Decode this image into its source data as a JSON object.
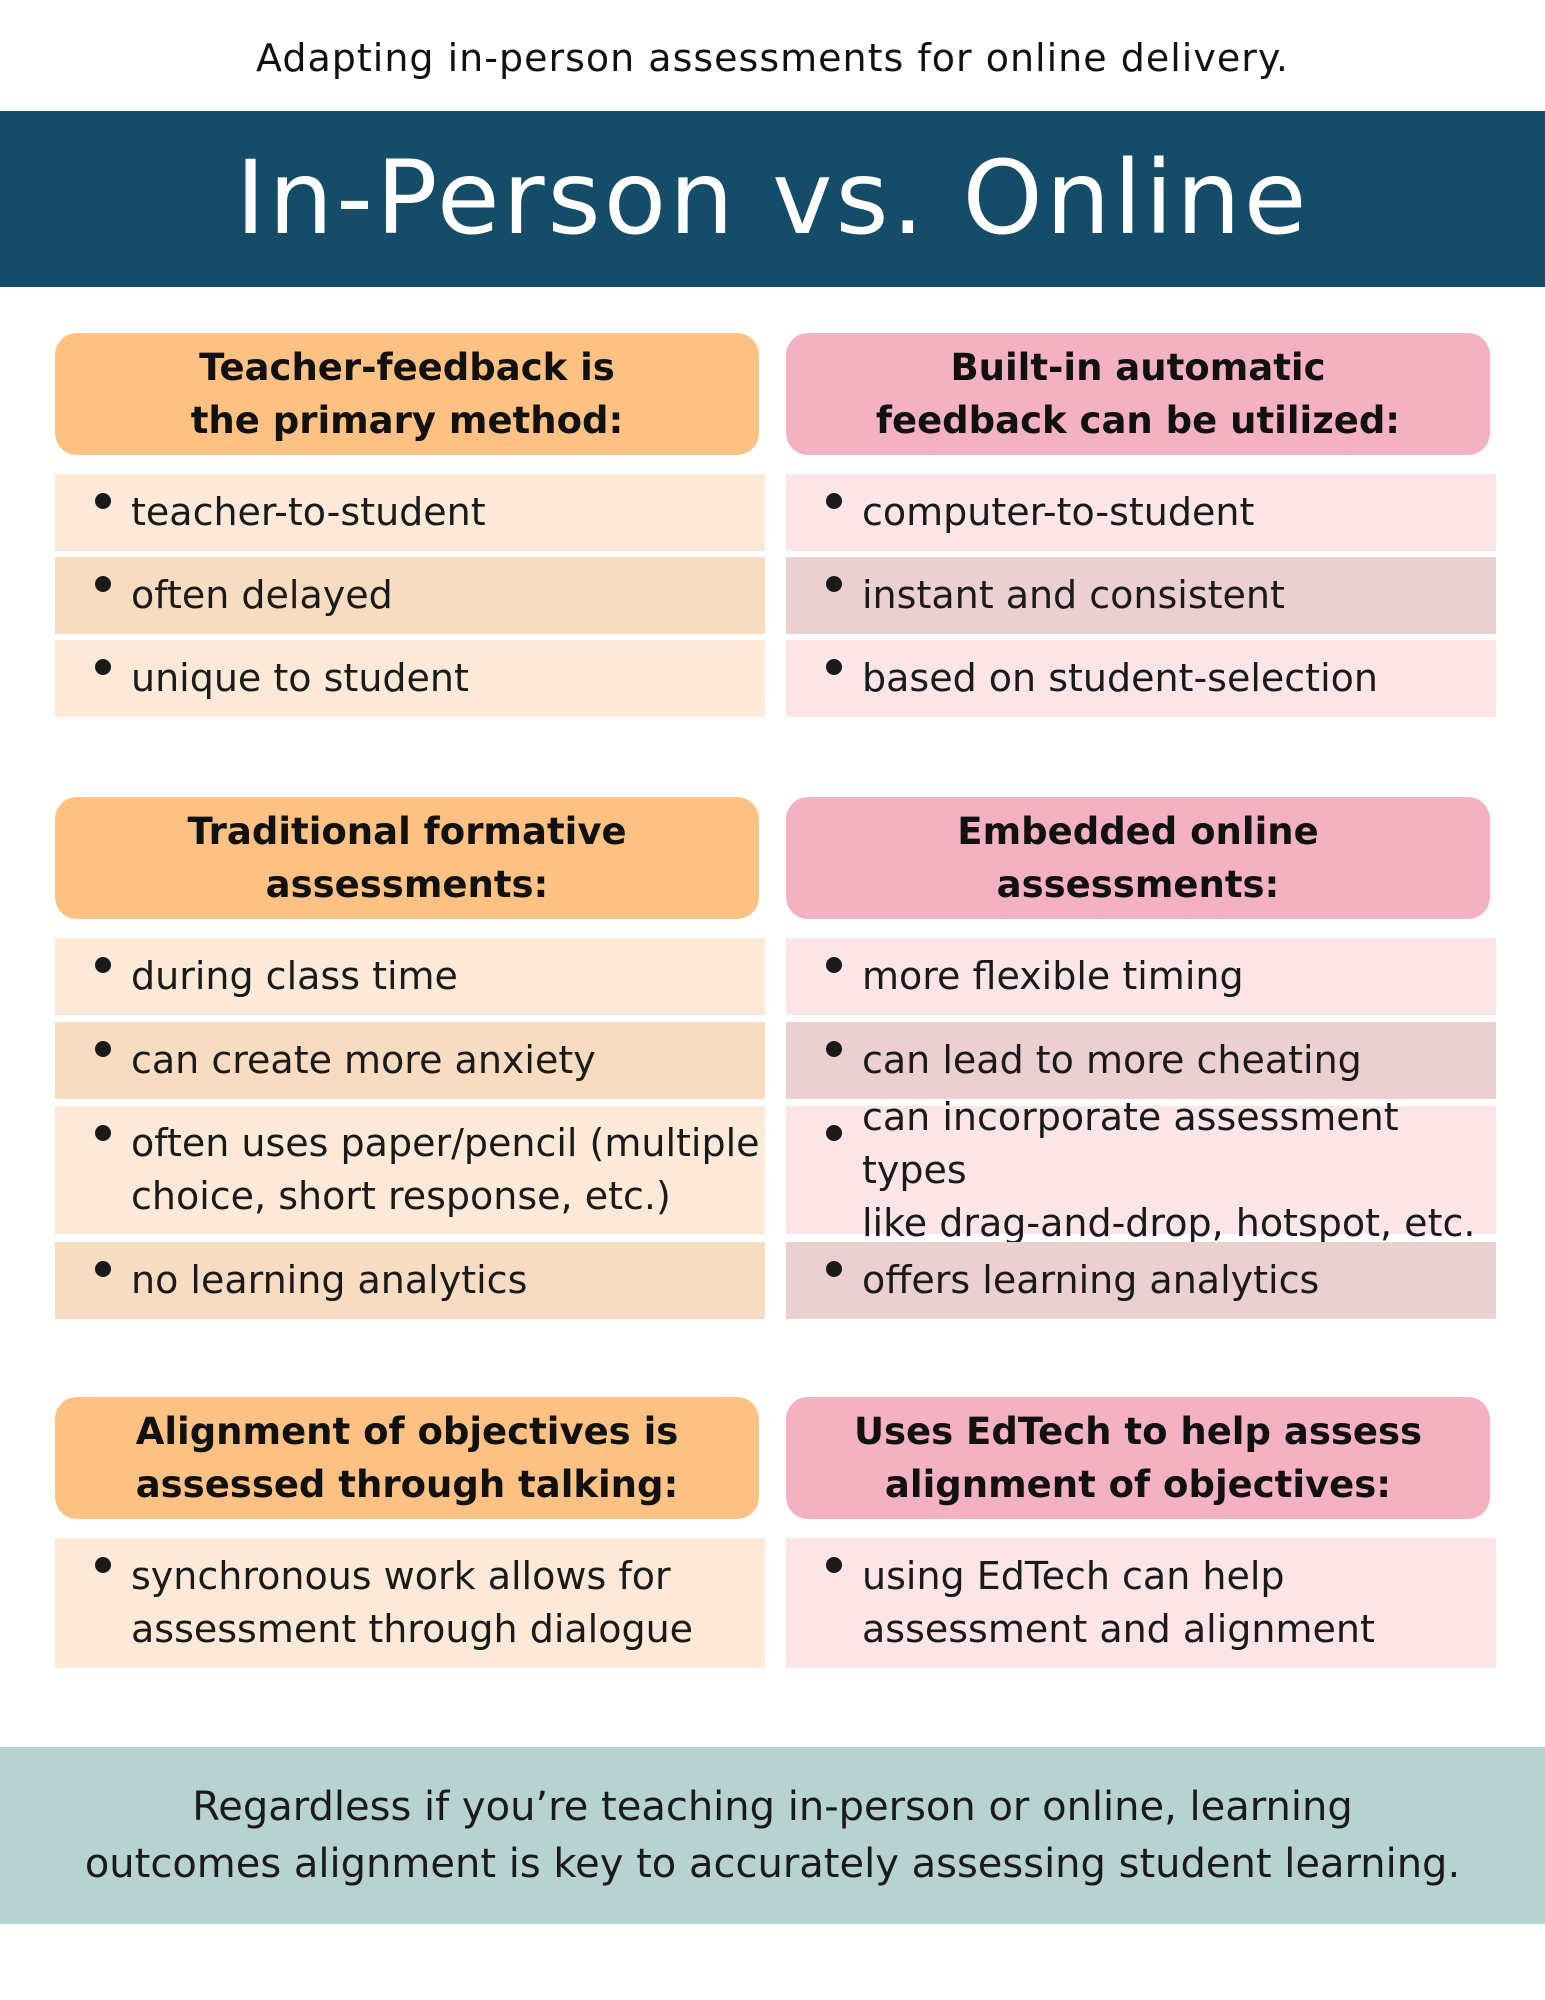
{
  "subtitle": "Adapting in-person assessments for online delivery.",
  "title": "In-Person vs. Online",
  "sections": [
    {
      "in_person": {
        "header": "Teacher-feedback is\nthe primary method:",
        "items": [
          "teacher-to-student",
          "often delayed",
          "unique to student"
        ]
      },
      "online": {
        "header": "Built-in automatic\nfeedback can be utilized:",
        "items": [
          "computer-to-student",
          "instant and consistent",
          "based on student-selection"
        ]
      }
    },
    {
      "in_person": {
        "header": "Traditional formative\nassessments:",
        "items": [
          "during class time",
          "can create more anxiety",
          "often uses paper/pencil (multiple\nchoice, short response, etc.)",
          "no learning analytics"
        ]
      },
      "online": {
        "header": "Embedded online\nassessments:",
        "items": [
          "more flexible timing",
          "can lead to more cheating",
          "can incorporate assessment types\nlike drag-and-drop, hotspot, etc.",
          "offers learning analytics"
        ]
      }
    },
    {
      "in_person": {
        "header": "Alignment of objectives is\nassessed through talking:",
        "items": [
          "synchronous work allows for\nassessment through dialogue"
        ]
      },
      "online": {
        "header": "Uses EdTech to help assess\nalignment of objectives:",
        "items": [
          "using EdTech can help\nassessment and alignment"
        ]
      }
    }
  ],
  "footer": "Regardless if you’re teaching in-person or online, learning\noutcomes alignment is key to accurately assessing student learning.",
  "colors": {
    "banner": "#154c67",
    "orange_header": "#fdc283",
    "pink_header": "#f4b1c1",
    "orange_row_light": "#fde9d7",
    "orange_row_dark": "#f7dcc1",
    "pink_row_light": "#fce5e7",
    "pink_row_dark": "#ebcfd1",
    "footer": "#b6d3d2"
  }
}
